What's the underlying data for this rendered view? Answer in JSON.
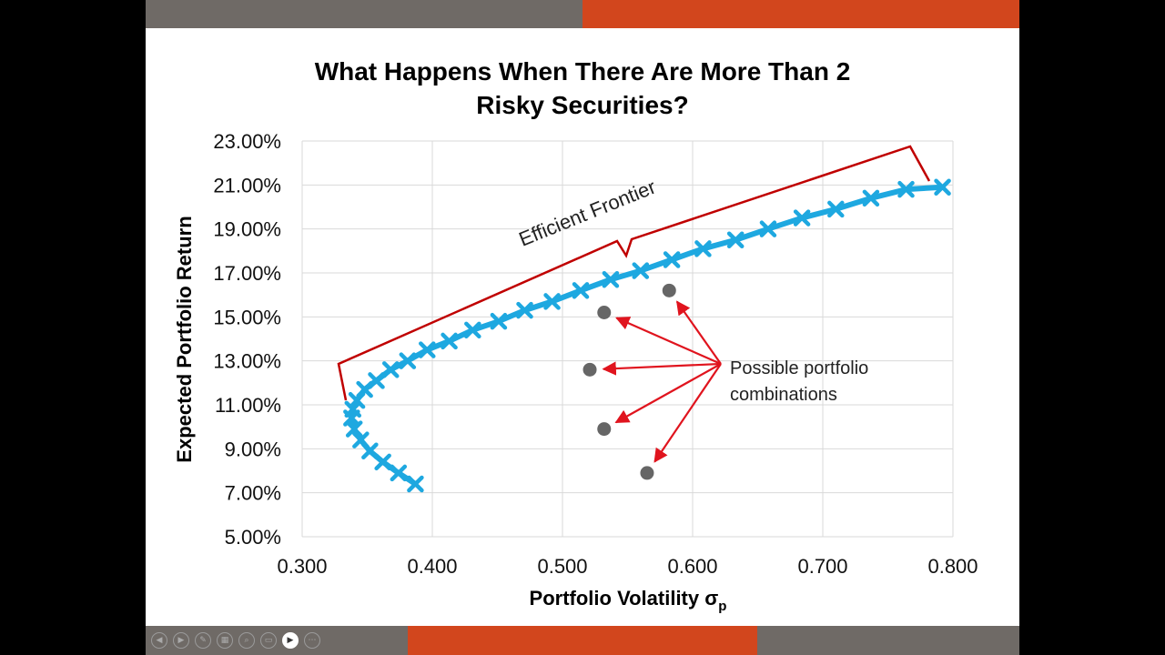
{
  "slide": {
    "title_line1": "What Happens When There Are More Than 2",
    "title_line2": "Risky Securities?",
    "colors": {
      "top_left": "#6f6a66",
      "top_right": "#d2461d",
      "bottom_left": "#6f6a66",
      "bottom_mid": "#d2461d",
      "bottom_right": "#6f6a66"
    }
  },
  "chart_data": {
    "type": "scatter",
    "title": "What Happens When There Are More Than 2 Risky Securities?",
    "xlabel": "Portfolio Volatility σp",
    "ylabel": "Expected Portfolio Return",
    "xlim": [
      0.3,
      0.8
    ],
    "ylim": [
      0.05,
      0.23
    ],
    "x_ticks": [
      "0.300",
      "0.400",
      "0.500",
      "0.600",
      "0.700",
      "0.800"
    ],
    "y_ticks": [
      "5.00%",
      "7.00%",
      "9.00%",
      "11.00%",
      "13.00%",
      "15.00%",
      "17.00%",
      "19.00%",
      "21.00%",
      "23.00%"
    ],
    "grid": true,
    "series": [
      {
        "name": "Efficient Frontier curve",
        "color": "#1ea8e0",
        "marker": "x",
        "x": [
          0.387,
          0.374,
          0.362,
          0.352,
          0.345,
          0.34,
          0.338,
          0.339,
          0.342,
          0.348,
          0.357,
          0.368,
          0.381,
          0.396,
          0.413,
          0.431,
          0.451,
          0.471,
          0.492,
          0.514,
          0.537,
          0.56,
          0.584,
          0.608,
          0.633,
          0.658,
          0.684,
          0.71,
          0.737,
          0.764,
          0.792
        ],
        "y": [
          0.074,
          0.079,
          0.084,
          0.089,
          0.094,
          0.099,
          0.104,
          0.108,
          0.112,
          0.117,
          0.121,
          0.126,
          0.13,
          0.135,
          0.139,
          0.144,
          0.148,
          0.153,
          0.157,
          0.162,
          0.167,
          0.171,
          0.176,
          0.181,
          0.185,
          0.19,
          0.195,
          0.199,
          0.204,
          0.208,
          0.209
        ]
      },
      {
        "name": "Possible portfolio combinations",
        "color": "#666666",
        "marker": "o",
        "x": [
          0.582,
          0.532,
          0.521,
          0.532,
          0.565
        ],
        "y": [
          0.162,
          0.152,
          0.126,
          0.099,
          0.079
        ]
      }
    ],
    "annotations": {
      "frontier_label": "Efficient Frontier",
      "combos_label_line1": "Possible portfolio",
      "combos_label_line2": "combinations"
    }
  },
  "controls": [
    "prev-icon",
    "next-icon",
    "pen-icon",
    "slides-icon",
    "zoom-icon",
    "subtitles-icon",
    "camera-icon",
    "more-icon"
  ],
  "control_glyphs": [
    "◀",
    "▶",
    "✎",
    "▦",
    "⌕",
    "▭",
    "▶",
    "⋯"
  ]
}
